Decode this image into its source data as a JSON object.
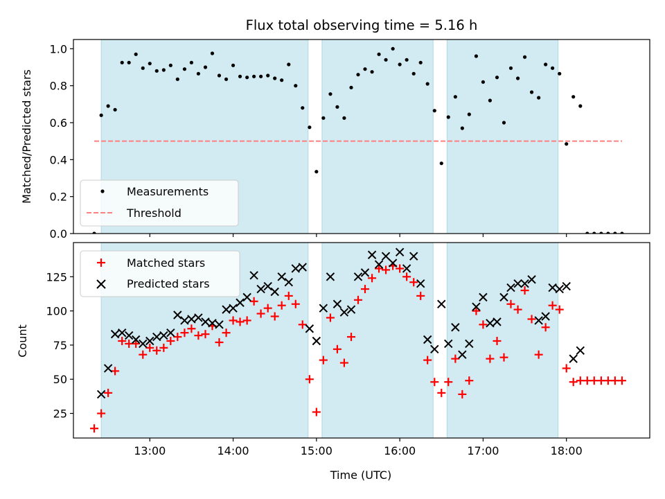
{
  "chart_data": [
    {
      "type": "scatter",
      "title": "Flux total observing time = 5.16 h",
      "ylabel": "Matched/Predicted stars",
      "xlim": [
        12.0833,
        19.0
      ],
      "ylim": [
        0.0,
        1.05
      ],
      "yticks": [
        0.0,
        0.2,
        0.4,
        0.6,
        0.8,
        1.0
      ],
      "ytick_labels": [
        "0.0",
        "0.2",
        "0.4",
        "0.6",
        "0.8",
        "1.0"
      ],
      "xticks": [
        13,
        14,
        15,
        16,
        17,
        18
      ],
      "shaded_intervals": [
        [
          12.417,
          14.9
        ],
        [
          15.067,
          16.4
        ],
        [
          16.567,
          17.9
        ]
      ],
      "shade_color": "#add8e6",
      "legend_position": "lower-left",
      "series": [
        {
          "name": "Measurements",
          "color": "#000000",
          "marker": "dot",
          "x": [
            12.333,
            12.417,
            12.5,
            12.583,
            12.667,
            12.75,
            12.833,
            12.917,
            13.0,
            13.083,
            13.167,
            13.25,
            13.333,
            13.417,
            13.5,
            13.583,
            13.667,
            13.75,
            13.833,
            13.917,
            14.0,
            14.083,
            14.167,
            14.25,
            14.333,
            14.417,
            14.5,
            14.583,
            14.667,
            14.75,
            14.833,
            14.917,
            15.0,
            15.083,
            15.167,
            15.25,
            15.333,
            15.417,
            15.5,
            15.583,
            15.667,
            15.75,
            15.833,
            15.917,
            16.0,
            16.083,
            16.167,
            16.25,
            16.333,
            16.417,
            16.5,
            16.583,
            16.667,
            16.75,
            16.833,
            16.917,
            17.0,
            17.083,
            17.167,
            17.25,
            17.333,
            17.417,
            17.5,
            17.583,
            17.667,
            17.75,
            17.833,
            17.917,
            18.0,
            18.083,
            18.167,
            18.25,
            18.333,
            18.417,
            18.5,
            18.583,
            18.667
          ],
          "y": [
            0.0,
            0.64,
            0.69,
            0.67,
            0.925,
            0.925,
            0.97,
            0.895,
            0.92,
            0.88,
            0.885,
            0.91,
            0.835,
            0.89,
            0.925,
            0.865,
            0.9,
            0.975,
            0.855,
            0.835,
            0.91,
            0.85,
            0.845,
            0.85,
            0.85,
            0.855,
            0.84,
            0.83,
            0.915,
            0.8,
            0.68,
            0.575,
            0.335,
            0.625,
            0.755,
            0.685,
            0.625,
            0.79,
            0.86,
            0.89,
            0.875,
            0.97,
            0.94,
            1.0,
            0.915,
            0.94,
            0.865,
            0.925,
            0.81,
            0.665,
            0.38,
            0.63,
            0.74,
            0.57,
            0.645,
            0.96,
            0.82,
            0.72,
            0.845,
            0.6,
            0.895,
            0.84,
            0.955,
            0.765,
            0.735,
            0.915,
            0.895,
            0.865,
            0.485,
            0.74,
            0.69,
            0.0,
            0.0,
            0.0,
            0.0,
            0.0,
            0.0
          ]
        },
        {
          "name": "Threshold",
          "color": "#ff7f7f",
          "style": "dashed",
          "x": [
            12.333,
            18.667
          ],
          "y": [
            0.5,
            0.5
          ]
        }
      ]
    },
    {
      "type": "scatter",
      "xlabel": "Time (UTC)",
      "ylabel": "Count",
      "xlim": [
        12.0833,
        19.0
      ],
      "ylim": [
        7.0,
        150.0
      ],
      "xticks": [
        13,
        14,
        15,
        16,
        17,
        18
      ],
      "xtick_labels": [
        "13:00",
        "14:00",
        "15:00",
        "16:00",
        "17:00",
        "18:00"
      ],
      "yticks": [
        25,
        50,
        75,
        100,
        125
      ],
      "ytick_labels": [
        "25",
        "50",
        "75",
        "100",
        "125"
      ],
      "shaded_intervals": [
        [
          12.417,
          14.9
        ],
        [
          15.067,
          16.4
        ],
        [
          16.567,
          17.9
        ]
      ],
      "shade_color": "#add8e6",
      "legend_position": "upper-left",
      "series": [
        {
          "name": "Matched stars",
          "color": "#ff0000",
          "marker": "plus",
          "x": [
            12.333,
            12.417,
            12.5,
            12.583,
            12.667,
            12.75,
            12.833,
            12.917,
            13.0,
            13.083,
            13.167,
            13.25,
            13.333,
            13.417,
            13.5,
            13.583,
            13.667,
            13.75,
            13.833,
            13.917,
            14.0,
            14.083,
            14.167,
            14.25,
            14.333,
            14.417,
            14.5,
            14.583,
            14.667,
            14.75,
            14.833,
            14.917,
            15.0,
            15.083,
            15.167,
            15.25,
            15.333,
            15.417,
            15.5,
            15.583,
            15.667,
            15.75,
            15.833,
            15.917,
            16.0,
            16.083,
            16.167,
            16.25,
            16.333,
            16.417,
            16.5,
            16.583,
            16.667,
            16.75,
            16.833,
            16.917,
            17.0,
            17.083,
            17.167,
            17.25,
            17.333,
            17.417,
            17.5,
            17.583,
            17.667,
            17.75,
            17.833,
            17.917,
            18.0,
            18.083,
            18.167,
            18.25,
            18.333,
            18.417,
            18.5,
            18.583,
            18.667
          ],
          "y": [
            14,
            25,
            40,
            56,
            78,
            76,
            76,
            68,
            73,
            71,
            73,
            78,
            81,
            84,
            87,
            82,
            83,
            89,
            77,
            84,
            93,
            92,
            93,
            107,
            98,
            102,
            96,
            104,
            111,
            105,
            90,
            50,
            26,
            64,
            95,
            72,
            62,
            81,
            108,
            116,
            124,
            131,
            130,
            133,
            131,
            125,
            121,
            111,
            64,
            48,
            40,
            48,
            65,
            39,
            49,
            100,
            90,
            65,
            78,
            66,
            105,
            101,
            115,
            94,
            68,
            88,
            104,
            101,
            58,
            48,
            49,
            49,
            49,
            49,
            49,
            49,
            49
          ]
        },
        {
          "name": "Predicted stars",
          "color": "#000000",
          "marker": "x",
          "x": [
            12.417,
            12.5,
            12.583,
            12.667,
            12.75,
            12.833,
            12.917,
            13.0,
            13.083,
            13.167,
            13.25,
            13.333,
            13.417,
            13.5,
            13.583,
            13.667,
            13.75,
            13.833,
            13.917,
            14.0,
            14.083,
            14.167,
            14.25,
            14.333,
            14.417,
            14.5,
            14.583,
            14.667,
            14.75,
            14.833,
            14.917,
            15.0,
            15.083,
            15.167,
            15.25,
            15.333,
            15.417,
            15.5,
            15.583,
            15.667,
            15.75,
            15.833,
            15.917,
            16.0,
            16.083,
            16.167,
            16.25,
            16.333,
            16.417,
            16.5,
            16.583,
            16.667,
            16.75,
            16.833,
            16.917,
            17.0,
            17.083,
            17.167,
            17.25,
            17.333,
            17.417,
            17.5,
            17.583,
            17.667,
            17.75,
            17.833,
            17.917,
            18.0,
            18.083,
            18.167
          ],
          "y": [
            39,
            58,
            83,
            84,
            82,
            79,
            76,
            78,
            81,
            82,
            84,
            97,
            93,
            94,
            95,
            92,
            91,
            90,
            101,
            102,
            106,
            110,
            126,
            116,
            118,
            114,
            125,
            121,
            131,
            132,
            87,
            78,
            102,
            125,
            105,
            99,
            101,
            125,
            128,
            141,
            134,
            140,
            135,
            143,
            131,
            140,
            120,
            79,
            72,
            105,
            76,
            88,
            68,
            76,
            103,
            110,
            91,
            92,
            110,
            117,
            120,
            120,
            123,
            93,
            96,
            117,
            116,
            118,
            65,
            71
          ]
        }
      ]
    }
  ]
}
